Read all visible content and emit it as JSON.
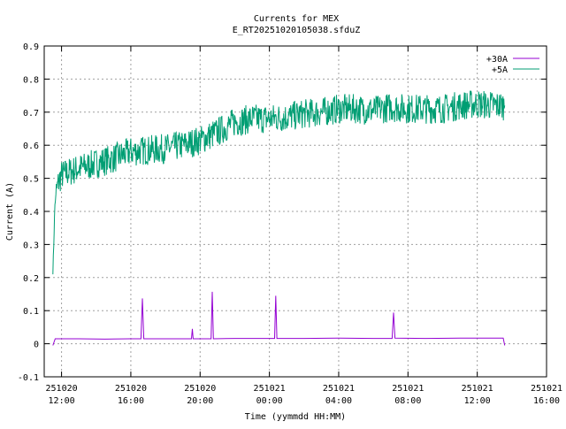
{
  "chart_data": {
    "type": "line",
    "title": "Currents for MEX",
    "subtitle": "E_RT20251020105038.sfduZ",
    "xlabel": "Time (yymmdd HH:MM)",
    "ylabel": "Current (A)",
    "ylim": [
      -0.1,
      0.9
    ],
    "yticks": [
      "-0.1",
      "0",
      "0.1",
      "0.2",
      "0.3",
      "0.4",
      "0.5",
      "0.6",
      "0.7",
      "0.8",
      "0.9"
    ],
    "xlim": [
      "2025-10-20 11:00",
      "2025-10-21 16:00"
    ],
    "xticks": [
      {
        "date": "251020",
        "time": "12:00"
      },
      {
        "date": "251020",
        "time": "16:00"
      },
      {
        "date": "251020",
        "time": "20:00"
      },
      {
        "date": "251021",
        "time": "00:00"
      },
      {
        "date": "251021",
        "time": "04:00"
      },
      {
        "date": "251021",
        "time": "08:00"
      },
      {
        "date": "251021",
        "time": "12:00"
      },
      {
        "date": "251021",
        "time": "16:00"
      }
    ],
    "grid": true,
    "legend_position": "top-right",
    "series": [
      {
        "name": "+30A",
        "color": "#9400d3",
        "x": [
          "2025-10-20 11:30",
          "2025-10-20 11:38",
          "2025-10-20 13:00",
          "2025-10-20 14:30",
          "2025-10-20 15:57",
          "2025-10-20 16:35",
          "2025-10-20 16:40",
          "2025-10-20 16:45",
          "2025-10-20 18:00",
          "2025-10-20 19:30",
          "2025-10-20 19:33",
          "2025-10-20 19:36",
          "2025-10-20 20:00",
          "2025-10-20 20:38",
          "2025-10-20 20:42",
          "2025-10-20 20:46",
          "2025-10-20 22:00",
          "2025-10-21 00:00",
          "2025-10-21 00:18",
          "2025-10-21 00:22",
          "2025-10-21 00:26",
          "2025-10-21 02:00",
          "2025-10-21 04:00",
          "2025-10-21 06:00",
          "2025-10-21 07:05",
          "2025-10-21 07:10",
          "2025-10-21 07:15",
          "2025-10-21 09:00",
          "2025-10-21 11:00",
          "2025-10-21 13:00",
          "2025-10-21 13:30",
          "2025-10-21 13:35"
        ],
        "y": [
          -0.005,
          0.015,
          0.015,
          0.014,
          0.015,
          0.015,
          0.137,
          0.015,
          0.015,
          0.015,
          0.045,
          0.015,
          0.015,
          0.015,
          0.157,
          0.015,
          0.016,
          0.016,
          0.016,
          0.145,
          0.016,
          0.016,
          0.017,
          0.016,
          0.016,
          0.094,
          0.017,
          0.016,
          0.017,
          0.017,
          0.017,
          -0.005
        ]
      },
      {
        "name": "+5A",
        "color": "#009e73",
        "x": [
          "2025-10-20 11:30",
          "2025-10-20 11:33",
          "2025-10-20 11:37",
          "2025-10-20 11:42",
          "2025-10-20 11:50",
          "2025-10-20 12:00",
          "2025-10-20 12:30",
          "2025-10-20 13:00",
          "2025-10-20 14:00",
          "2025-10-20 15:00",
          "2025-10-20 16:00",
          "2025-10-20 17:00",
          "2025-10-20 18:00",
          "2025-10-20 19:00",
          "2025-10-20 20:00",
          "2025-10-20 21:00",
          "2025-10-20 22:00",
          "2025-10-20 23:00",
          "2025-10-21 00:00",
          "2025-10-21 01:00",
          "2025-10-21 02:00",
          "2025-10-21 03:00",
          "2025-10-21 04:00",
          "2025-10-21 05:00",
          "2025-10-21 06:00",
          "2025-10-21 07:00",
          "2025-10-21 08:00",
          "2025-10-21 09:00",
          "2025-10-21 10:00",
          "2025-10-21 11:00",
          "2025-10-21 12:00",
          "2025-10-21 13:00",
          "2025-10-21 13:35"
        ],
        "y": [
          0.22,
          0.3,
          0.42,
          0.46,
          0.49,
          0.51,
          0.52,
          0.53,
          0.545,
          0.56,
          0.58,
          0.585,
          0.59,
          0.6,
          0.615,
          0.64,
          0.67,
          0.68,
          0.68,
          0.685,
          0.695,
          0.7,
          0.71,
          0.71,
          0.705,
          0.715,
          0.71,
          0.71,
          0.71,
          0.72,
          0.725,
          0.72,
          0.72
        ]
      }
    ]
  }
}
